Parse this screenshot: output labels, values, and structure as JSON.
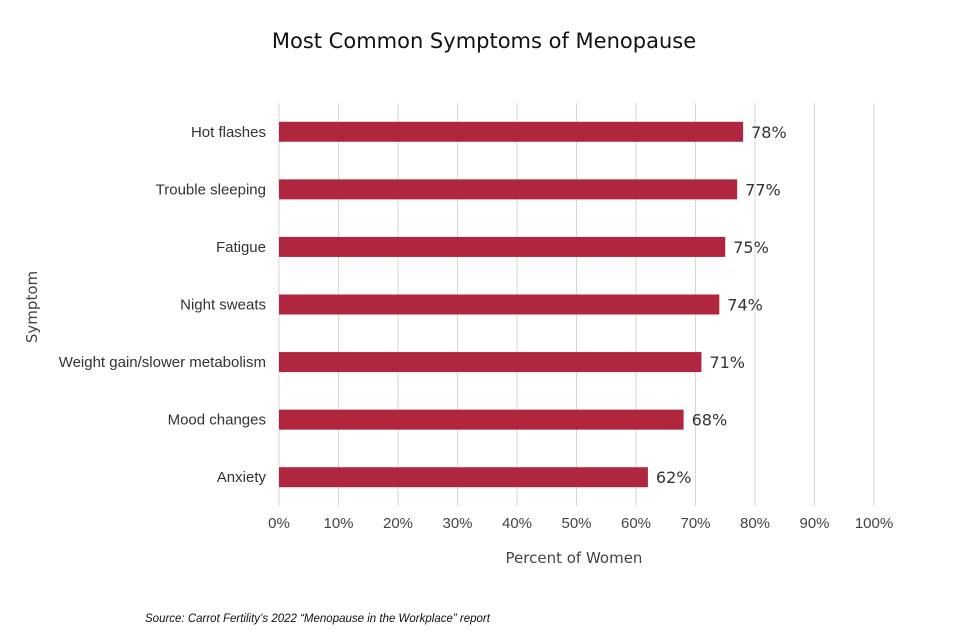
{
  "chart_data": {
    "type": "bar",
    "orientation": "horizontal",
    "title": "Most Common Symptoms of Menopause",
    "xlabel": "Percent of Women",
    "ylabel": "Symptom",
    "categories": [
      "Hot flashes",
      "Trouble sleeping",
      "Fatigue",
      "Night sweats",
      "Weight gain/slower metabolism",
      "Mood changes",
      "Anxiety"
    ],
    "values": [
      78,
      77,
      75,
      74,
      71,
      68,
      62
    ],
    "value_labels": [
      "78%",
      "77%",
      "75%",
      "74%",
      "71%",
      "68%",
      "62%"
    ],
    "xlim": [
      0,
      100
    ],
    "x_ticks": [
      "0%",
      "10%",
      "20%",
      "30%",
      "40%",
      "50%",
      "60%",
      "70%",
      "80%",
      "90%",
      "100%"
    ],
    "grid": "vertical",
    "bar_color": "#b0263f",
    "grid_color": "#d6d6d6",
    "source": "Source: Carrot Fertility’s 2022 “Menopause in the Workplace” report"
  }
}
